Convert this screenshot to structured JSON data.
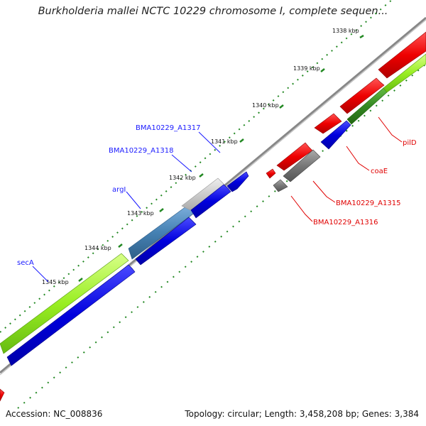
{
  "title": "Burkholderia mallei NCTC 10229 chromosome I, complete sequen...",
  "footer": {
    "accession": "Accession: NC_008836",
    "summary": "Topology: circular; Length: 3,458,208 bp; Genes: 3,384"
  },
  "ticks": [
    "1338 kbp",
    "1339 kbp",
    "1340 kbp",
    "1341 kbp",
    "1342 kbp",
    "1343 kbp",
    "1344 kbp",
    "1345 kbp"
  ],
  "gene_labels": [
    {
      "text": "BMA10229_A1317",
      "color": "blue"
    },
    {
      "text": "BMA10229_A1318",
      "color": "blue"
    },
    {
      "text": "argI",
      "color": "blue"
    },
    {
      "text": "secA",
      "color": "blue"
    },
    {
      "text": "pilD",
      "color": "red"
    },
    {
      "text": "coaE",
      "color": "red"
    },
    {
      "text": "BMA10229_A1315",
      "color": "red"
    },
    {
      "text": "BMA10229_A1316",
      "color": "red"
    }
  ],
  "colors": {
    "cds_forward": "#0000dd",
    "cds_reverse": "#ee0000",
    "gene_lightgreen": "#99ee22",
    "gene_gray": "#777777",
    "gene_lightgray": "#cccccc",
    "gene_steelblue": "#4682b4",
    "backbone": "#888888",
    "gc_dots": "#228822"
  }
}
